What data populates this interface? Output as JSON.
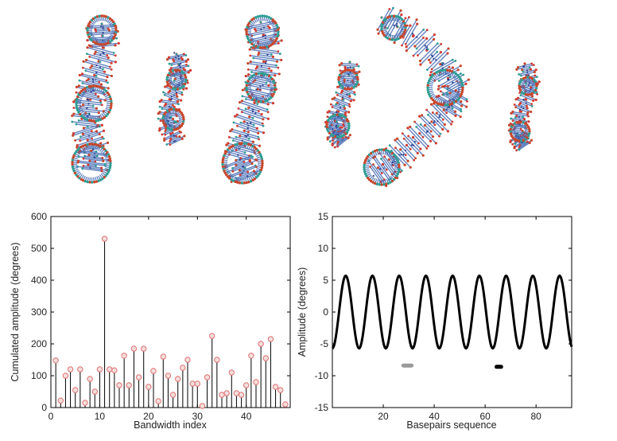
{
  "figure": {
    "top_panel": {
      "molecule_count": 6,
      "colors": {
        "backbone": "#4a6fb5",
        "phosphate": "#c8462b",
        "oxygen": "#d23b2f",
        "carbon": "#2f9e94"
      }
    }
  },
  "chart_data": [
    {
      "type": "bar",
      "style": "stem",
      "xlabel": "Bandwidth index",
      "ylabel": "Cumulated amplitude (degrees)",
      "xlim": [
        0,
        49
      ],
      "ylim": [
        0,
        600
      ],
      "xticks": [
        0,
        10,
        20,
        30,
        40
      ],
      "yticks": [
        0,
        100,
        200,
        300,
        400,
        500,
        600
      ],
      "x": [
        1,
        2,
        3,
        4,
        5,
        6,
        7,
        8,
        9,
        10,
        11,
        12,
        13,
        14,
        15,
        16,
        17,
        18,
        19,
        20,
        21,
        22,
        23,
        24,
        25,
        26,
        27,
        28,
        29,
        30,
        31,
        32,
        33,
        34,
        35,
        36,
        37,
        38,
        39,
        40,
        41,
        42,
        43,
        44,
        45,
        46,
        47,
        48
      ],
      "values": [
        148,
        22,
        100,
        120,
        55,
        120,
        15,
        90,
        50,
        120,
        530,
        120,
        117,
        70,
        163,
        70,
        185,
        95,
        185,
        65,
        115,
        20,
        160,
        100,
        40,
        90,
        125,
        150,
        75,
        75,
        5,
        95,
        225,
        150,
        40,
        45,
        110,
        45,
        40,
        70,
        163,
        80,
        200,
        155,
        215,
        65,
        55,
        10
      ],
      "colors": {
        "stem": "#000000",
        "marker_edge": "#e07070",
        "marker_fill": "#f3dede"
      },
      "grid": false
    },
    {
      "type": "line",
      "xlabel": "Basepairs sequence",
      "ylabel": "Amplitude (degrees)",
      "xlim": [
        0,
        94
      ],
      "ylim": [
        -15,
        15
      ],
      "xticks": [
        20,
        40,
        60,
        80
      ],
      "yticks": [
        -15,
        -10,
        -5,
        0,
        5,
        10,
        15
      ],
      "series": [
        {
          "amplitude": 5.7,
          "period": 10.5,
          "phase_x": 0,
          "color": "#000000"
        }
      ],
      "markers": [
        {
          "x": 29.5,
          "y": -8.4,
          "width": 3.2,
          "color": "#9a9a9a"
        },
        {
          "x": 65.4,
          "y": -8.6,
          "width": 1.8,
          "color": "#000000"
        }
      ],
      "grid": false
    }
  ]
}
